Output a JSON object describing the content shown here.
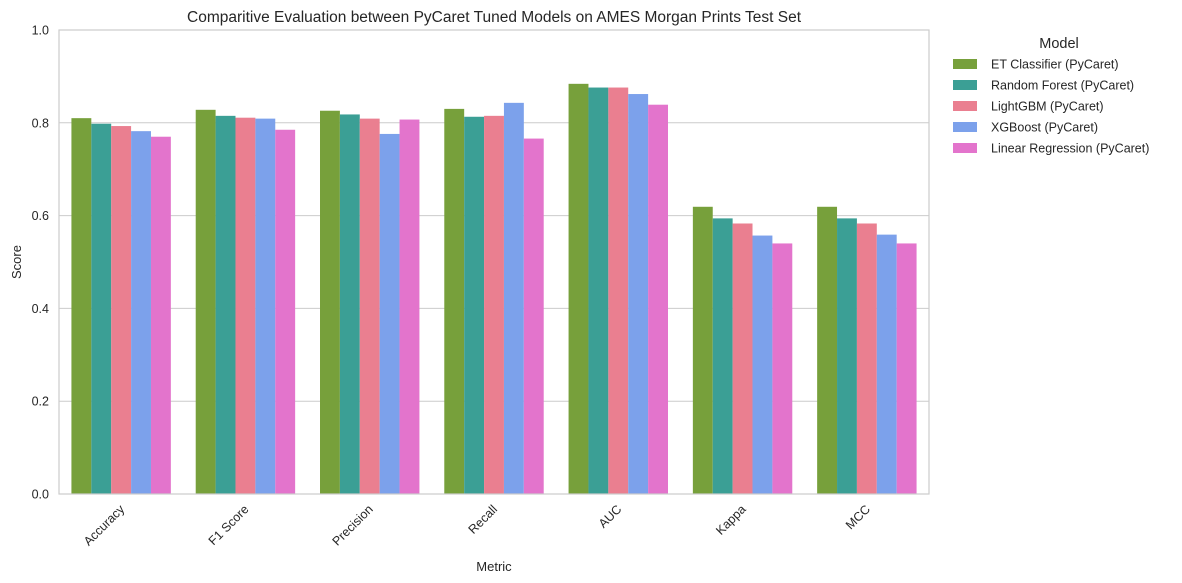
{
  "chart_data": {
    "type": "bar",
    "title": "Comparitive Evaluation between PyCaret Tuned Models on AMES Morgan Prints Test Set",
    "xlabel": "Metric",
    "ylabel": "Score",
    "ylim": [
      0,
      1.0
    ],
    "yticks": [
      "0.0",
      "0.2",
      "0.4",
      "0.6",
      "0.8",
      "1.0"
    ],
    "grid": true,
    "legend": {
      "title": "Model",
      "placement": "outside-right-top"
    },
    "categories": [
      "Accuracy",
      "F1 Score",
      "Precision",
      "Recall",
      "AUC",
      "Kappa",
      "MCC"
    ],
    "series": [
      {
        "name": "ET Classifier (PyCaret)",
        "color": "#77a03b",
        "values": [
          0.81,
          0.828,
          0.826,
          0.83,
          0.884,
          0.619,
          0.619
        ]
      },
      {
        "name": "Random Forest (PyCaret)",
        "color": "#3b9f95",
        "values": [
          0.798,
          0.815,
          0.818,
          0.813,
          0.876,
          0.594,
          0.594
        ]
      },
      {
        "name": "LightGBM (PyCaret)",
        "color": "#ea7f90",
        "values": [
          0.793,
          0.811,
          0.809,
          0.815,
          0.876,
          0.583,
          0.583
        ]
      },
      {
        "name": "XGBoost (PyCaret)",
        "color": "#7ca1eb",
        "values": [
          0.782,
          0.809,
          0.776,
          0.843,
          0.862,
          0.557,
          0.559
        ]
      },
      {
        "name": "Linear Regression (PyCaret)",
        "color": "#e374cc",
        "values": [
          0.77,
          0.785,
          0.807,
          0.766,
          0.839,
          0.54,
          0.54
        ]
      }
    ]
  }
}
